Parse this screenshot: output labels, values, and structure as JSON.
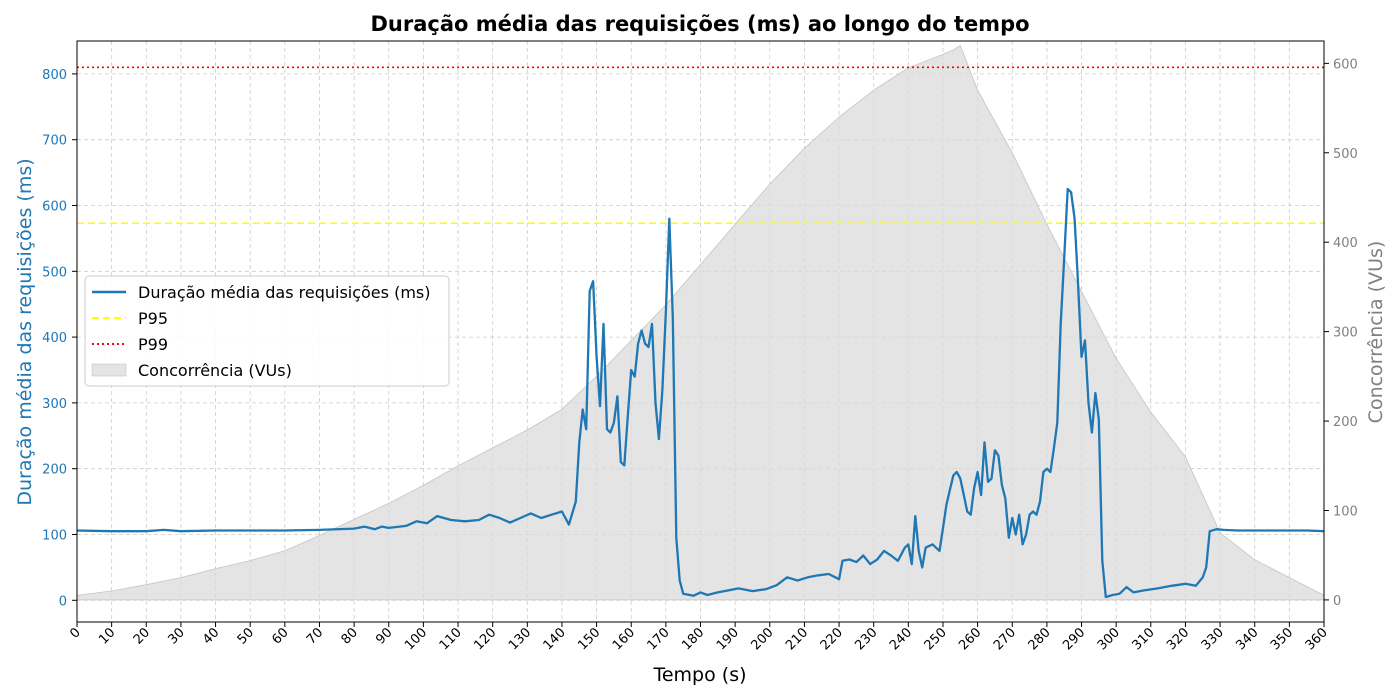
{
  "chart_data": {
    "type": "line",
    "title": "Duração média das requisições (ms) ao longo do tempo",
    "xlabel": "Tempo (s)",
    "ylabel": "Duração média das requisições (ms)",
    "y2label": "Concorrência (VUs)",
    "xlim": [
      0,
      360
    ],
    "ylim": [
      -33,
      850
    ],
    "y2lim": [
      -24.7,
      625
    ],
    "x_ticks": [
      0,
      10,
      20,
      30,
      40,
      50,
      60,
      70,
      80,
      90,
      100,
      110,
      120,
      130,
      140,
      150,
      160,
      170,
      180,
      190,
      200,
      210,
      220,
      230,
      240,
      250,
      260,
      270,
      280,
      290,
      300,
      310,
      320,
      330,
      340,
      350,
      360
    ],
    "y_ticks": [
      0,
      100,
      200,
      300,
      400,
      500,
      600,
      700,
      800
    ],
    "y2_ticks": [
      0,
      100,
      200,
      300,
      400,
      500,
      600
    ],
    "grid": true,
    "legend_position": "center-left",
    "colors": {
      "duration": "#1f77b4",
      "p95": "#ffff00",
      "p99": "#ff0000",
      "concurrency_fill": "#d9d9d9",
      "concurrency_text": "#808080",
      "grid": "#cccccc"
    },
    "series": [
      {
        "name": "Duração média das requisições (ms)",
        "axis": "left",
        "points": [
          [
            0,
            106
          ],
          [
            10,
            105
          ],
          [
            20,
            105
          ],
          [
            25,
            107
          ],
          [
            30,
            105
          ],
          [
            40,
            106
          ],
          [
            50,
            106
          ],
          [
            60,
            106
          ],
          [
            70,
            107
          ],
          [
            80,
            109
          ],
          [
            83,
            112
          ],
          [
            86,
            108
          ],
          [
            88,
            112
          ],
          [
            90,
            110
          ],
          [
            95,
            113
          ],
          [
            98,
            120
          ],
          [
            101,
            117
          ],
          [
            104,
            128
          ],
          [
            108,
            122
          ],
          [
            112,
            120
          ],
          [
            116,
            122
          ],
          [
            119,
            130
          ],
          [
            122,
            125
          ],
          [
            125,
            118
          ],
          [
            128,
            125
          ],
          [
            131,
            132
          ],
          [
            134,
            125
          ],
          [
            137,
            130
          ],
          [
            140,
            135
          ],
          [
            142,
            115
          ],
          [
            144,
            150
          ],
          [
            145,
            240
          ],
          [
            146,
            290
          ],
          [
            147,
            260
          ],
          [
            148,
            470
          ],
          [
            149,
            485
          ],
          [
            150,
            370
          ],
          [
            151,
            295
          ],
          [
            152,
            420
          ],
          [
            153,
            260
          ],
          [
            154,
            255
          ],
          [
            155,
            270
          ],
          [
            156,
            310
          ],
          [
            157,
            210
          ],
          [
            158,
            205
          ],
          [
            159,
            280
          ],
          [
            160,
            350
          ],
          [
            161,
            340
          ],
          [
            162,
            390
          ],
          [
            163,
            410
          ],
          [
            164,
            390
          ],
          [
            165,
            385
          ],
          [
            166,
            420
          ],
          [
            167,
            300
          ],
          [
            168,
            245
          ],
          [
            169,
            320
          ],
          [
            170,
            440
          ],
          [
            171,
            580
          ],
          [
            172,
            430
          ],
          [
            173,
            95
          ],
          [
            174,
            30
          ],
          [
            175,
            10
          ],
          [
            178,
            7
          ],
          [
            180,
            12
          ],
          [
            182,
            8
          ],
          [
            185,
            12
          ],
          [
            188,
            15
          ],
          [
            191,
            18
          ],
          [
            195,
            14
          ],
          [
            199,
            17
          ],
          [
            202,
            23
          ],
          [
            205,
            35
          ],
          [
            208,
            30
          ],
          [
            211,
            35
          ],
          [
            214,
            38
          ],
          [
            217,
            40
          ],
          [
            220,
            32
          ],
          [
            221,
            60
          ],
          [
            223,
            62
          ],
          [
            225,
            58
          ],
          [
            227,
            68
          ],
          [
            229,
            55
          ],
          [
            231,
            62
          ],
          [
            233,
            75
          ],
          [
            235,
            68
          ],
          [
            237,
            60
          ],
          [
            239,
            80
          ],
          [
            240,
            85
          ],
          [
            241,
            55
          ],
          [
            242,
            128
          ],
          [
            243,
            75
          ],
          [
            244,
            50
          ],
          [
            245,
            80
          ],
          [
            247,
            85
          ],
          [
            249,
            75
          ],
          [
            250,
            110
          ],
          [
            251,
            145
          ],
          [
            252,
            168
          ],
          [
            253,
            190
          ],
          [
            254,
            195
          ],
          [
            255,
            185
          ],
          [
            256,
            160
          ],
          [
            257,
            135
          ],
          [
            258,
            130
          ],
          [
            259,
            170
          ],
          [
            260,
            195
          ],
          [
            261,
            160
          ],
          [
            262,
            240
          ],
          [
            263,
            180
          ],
          [
            264,
            185
          ],
          [
            265,
            228
          ],
          [
            266,
            220
          ],
          [
            267,
            175
          ],
          [
            268,
            155
          ],
          [
            269,
            95
          ],
          [
            270,
            125
          ],
          [
            271,
            100
          ],
          [
            272,
            130
          ],
          [
            273,
            85
          ],
          [
            274,
            100
          ],
          [
            275,
            130
          ],
          [
            276,
            135
          ],
          [
            277,
            130
          ],
          [
            278,
            150
          ],
          [
            279,
            195
          ],
          [
            280,
            200
          ],
          [
            281,
            195
          ],
          [
            282,
            230
          ],
          [
            283,
            270
          ],
          [
            284,
            420
          ],
          [
            285,
            520
          ],
          [
            286,
            625
          ],
          [
            287,
            620
          ],
          [
            288,
            580
          ],
          [
            289,
            480
          ],
          [
            290,
            370
          ],
          [
            291,
            395
          ],
          [
            292,
            300
          ],
          [
            293,
            255
          ],
          [
            294,
            315
          ],
          [
            295,
            275
          ],
          [
            296,
            60
          ],
          [
            297,
            5
          ],
          [
            299,
            8
          ],
          [
            301,
            10
          ],
          [
            303,
            20
          ],
          [
            305,
            12
          ],
          [
            308,
            15
          ],
          [
            312,
            18
          ],
          [
            316,
            22
          ],
          [
            320,
            25
          ],
          [
            323,
            22
          ],
          [
            325,
            35
          ],
          [
            326,
            50
          ],
          [
            327,
            105
          ],
          [
            329,
            108
          ],
          [
            331,
            107
          ],
          [
            335,
            106
          ],
          [
            340,
            106
          ],
          [
            345,
            106
          ],
          [
            350,
            106
          ],
          [
            355,
            106
          ],
          [
            360,
            105
          ]
        ]
      },
      {
        "name": "P95",
        "axis": "left",
        "style": "dashed",
        "value": 573
      },
      {
        "name": "P99",
        "axis": "left",
        "style": "dotted",
        "value": 810
      },
      {
        "name": "Concorrência (VUs)",
        "axis": "right",
        "style": "area",
        "points": [
          [
            0,
            5
          ],
          [
            10,
            10
          ],
          [
            20,
            17
          ],
          [
            30,
            25
          ],
          [
            40,
            35
          ],
          [
            50,
            44
          ],
          [
            60,
            55
          ],
          [
            70,
            72
          ],
          [
            80,
            90
          ],
          [
            90,
            108
          ],
          [
            100,
            128
          ],
          [
            110,
            150
          ],
          [
            120,
            170
          ],
          [
            130,
            190
          ],
          [
            140,
            213
          ],
          [
            150,
            250
          ],
          [
            160,
            290
          ],
          [
            170,
            330
          ],
          [
            180,
            375
          ],
          [
            190,
            420
          ],
          [
            200,
            465
          ],
          [
            210,
            505
          ],
          [
            220,
            540
          ],
          [
            230,
            570
          ],
          [
            240,
            595
          ],
          [
            250,
            610
          ],
          [
            253,
            615
          ],
          [
            255,
            620
          ],
          [
            260,
            570
          ],
          [
            270,
            500
          ],
          [
            280,
            420
          ],
          [
            290,
            345
          ],
          [
            300,
            270
          ],
          [
            310,
            210
          ],
          [
            320,
            160
          ],
          [
            330,
            75
          ],
          [
            340,
            45
          ],
          [
            350,
            25
          ],
          [
            360,
            5
          ]
        ]
      }
    ]
  }
}
